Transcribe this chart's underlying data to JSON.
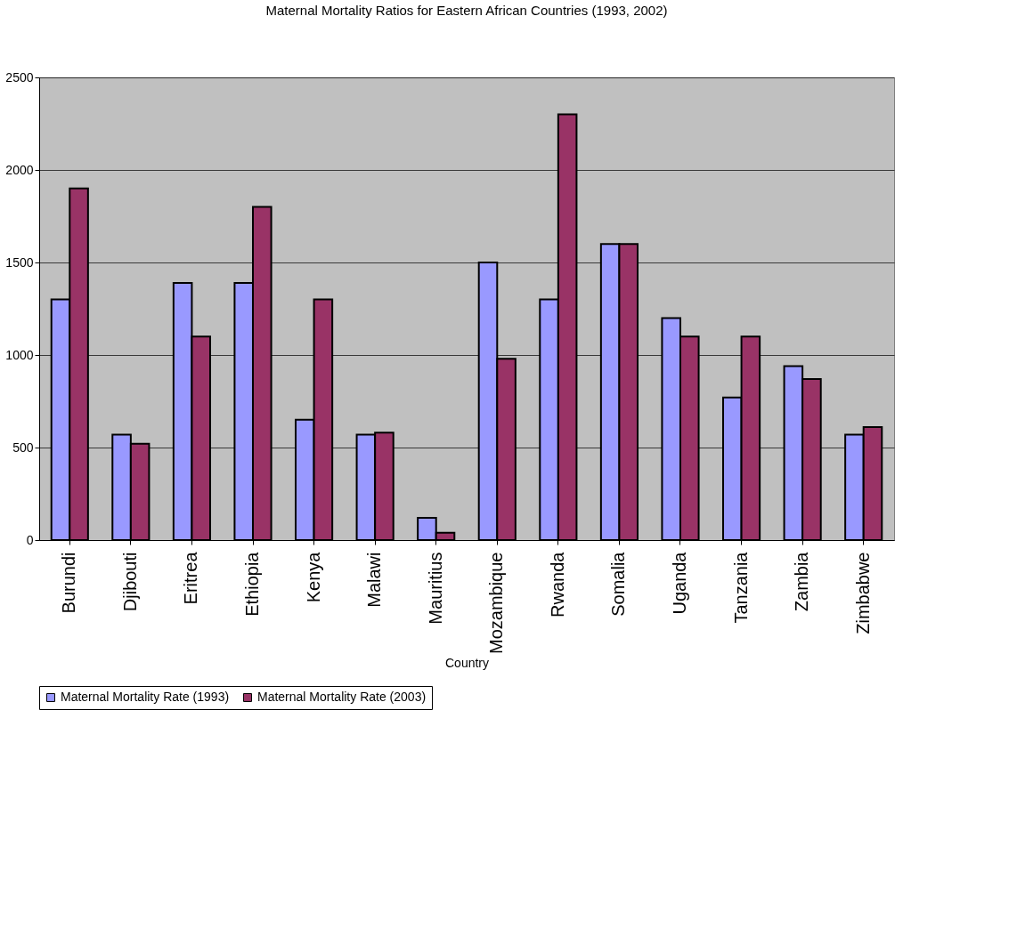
{
  "chart_data": {
    "type": "bar",
    "title": "Maternal Mortality Ratios for Eastern African Countries (1993, 2002)",
    "xlabel": "Country",
    "categories": [
      "Burundi",
      "Djibouti",
      "Eritrea",
      "Ethiopia",
      "Kenya",
      "Malawi",
      "Mauritius",
      "Mozambique",
      "Rwanda",
      "Somalia",
      "Uganda",
      "Tanzania",
      "Zambia",
      "Zimbabwe"
    ],
    "series": [
      {
        "name": "Maternal Mortality  Rate (1993)",
        "color": "#9999ff",
        "values": [
          1300,
          570,
          1390,
          1390,
          650,
          570,
          120,
          1500,
          1300,
          1600,
          1200,
          770,
          940,
          570
        ]
      },
      {
        "name": "Maternal Mortality Rate (2003)",
        "color": "#993366",
        "values": [
          1900,
          520,
          1100,
          1800,
          1300,
          580,
          40,
          980,
          2300,
          1600,
          1100,
          1100,
          870,
          610
        ]
      }
    ],
    "ylim": [
      0,
      2500
    ],
    "yticks": [
      0,
      500,
      1000,
      1500,
      2000,
      2500
    ],
    "grid": "y",
    "legend": "bottom"
  }
}
